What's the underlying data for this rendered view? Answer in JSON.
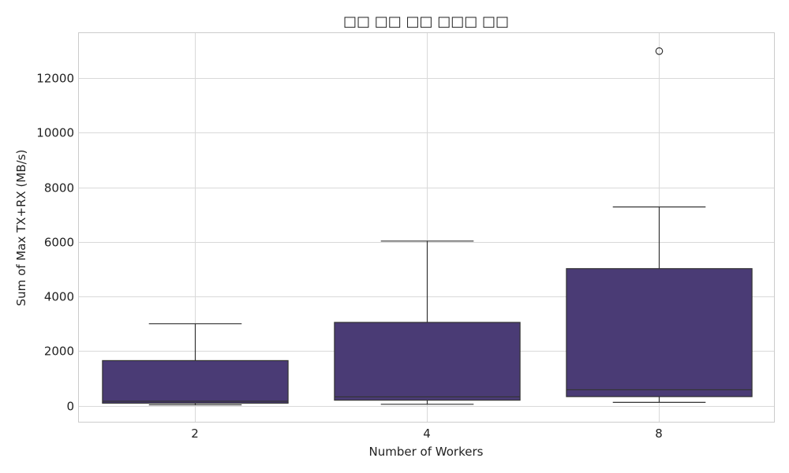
{
  "chart_data": {
    "type": "box",
    "title": "□□ □□ □□ □□□ □□",
    "xlabel": "Number of Workers",
    "ylabel": "Sum of Max TX+RX (MB/s)",
    "categories": [
      "2",
      "4",
      "8"
    ],
    "ylim": [
      -620,
      13650
    ],
    "yticks": [
      0,
      2000,
      4000,
      6000,
      8000,
      10000,
      12000
    ],
    "grid": true,
    "box_color": "#4a3b75",
    "boxes": [
      {
        "category": "2",
        "whisker_low": 30,
        "q1": 90,
        "median": 160,
        "q3": 1650,
        "whisker_high": 3000,
        "outliers": []
      },
      {
        "category": "4",
        "whisker_low": 50,
        "q1": 200,
        "median": 320,
        "q3": 3050,
        "whisker_high": 6030,
        "outliers": []
      },
      {
        "category": "8",
        "whisker_low": 120,
        "q1": 330,
        "median": 580,
        "q3": 5020,
        "whisker_high": 7280,
        "outliers": [
          12990
        ]
      }
    ]
  }
}
